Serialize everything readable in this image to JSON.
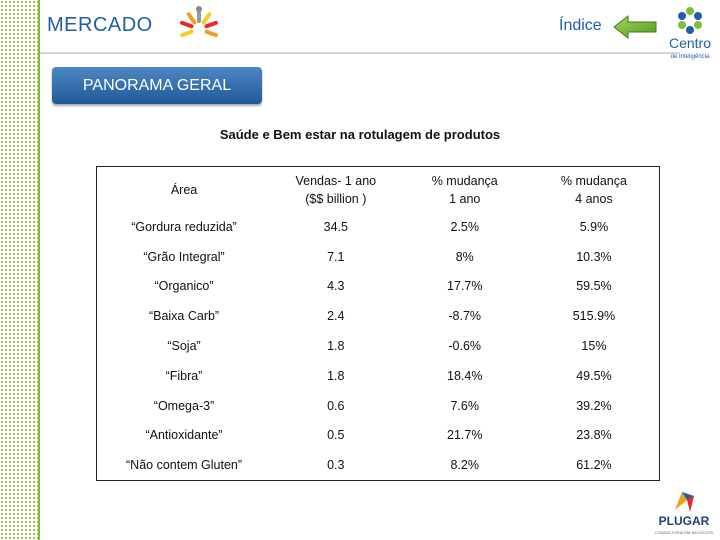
{
  "header": {
    "brand": "MERCADO",
    "index_label": "Índice"
  },
  "section": {
    "tab_label": "PANORAMA GERAL"
  },
  "table": {
    "title": "Saúde e Bem estar na rotulagem de produtos",
    "headers": {
      "area": "Área",
      "sales_line1": "Vendas- 1 ano",
      "sales_line2": "($$ billion )",
      "change1_line1": "% mudança",
      "change1_line2": "1 ano",
      "change4_line1": "% mudança",
      "change4_line2": "4 anos"
    },
    "rows": [
      {
        "area": "“Gordura reduzida”",
        "sales": "34.5",
        "change_1y": "2.5%",
        "change_4y": "5.9%"
      },
      {
        "area": "“Grão Integral”",
        "sales": "7.1",
        "change_1y": "8%",
        "change_4y": "10.3%"
      },
      {
        "area": "“Organico”",
        "sales": "4.3",
        "change_1y": "17.7%",
        "change_4y": "59.5%"
      },
      {
        "area": "“Baixa Carb”",
        "sales": "2.4",
        "change_1y": "-8.7%",
        "change_4y": "515.9%"
      },
      {
        "area": "“Soja”",
        "sales": "1.8",
        "change_1y": "-0.6%",
        "change_4y": "15%"
      },
      {
        "area": "“Fibra”",
        "sales": "1.8",
        "change_1y": "18.4%",
        "change_4y": "49.5%"
      },
      {
        "area": "“Omega-3”",
        "sales": "0.6",
        "change_1y": "7.6%",
        "change_4y": "39.2%"
      },
      {
        "area": "“Antioxidante”",
        "sales": "0.5",
        "change_1y": "21.7%",
        "change_4y": "23.8%"
      },
      {
        "area": "“Não contem Gluten”",
        "sales": "0.3",
        "change_1y": "8.2%",
        "change_4y": "61.2%"
      }
    ]
  },
  "logos": {
    "centro_text": "Centro",
    "centro_sub": "de Inteligência",
    "plugar_text": "PLUGAR",
    "plugar_sub": "CONSULTORIA EM NEGÓCIOS"
  },
  "colors": {
    "brand_blue": "#1f5fa8",
    "accent_green": "#7cbf3a",
    "pill_blue": "#2e6bb0"
  }
}
